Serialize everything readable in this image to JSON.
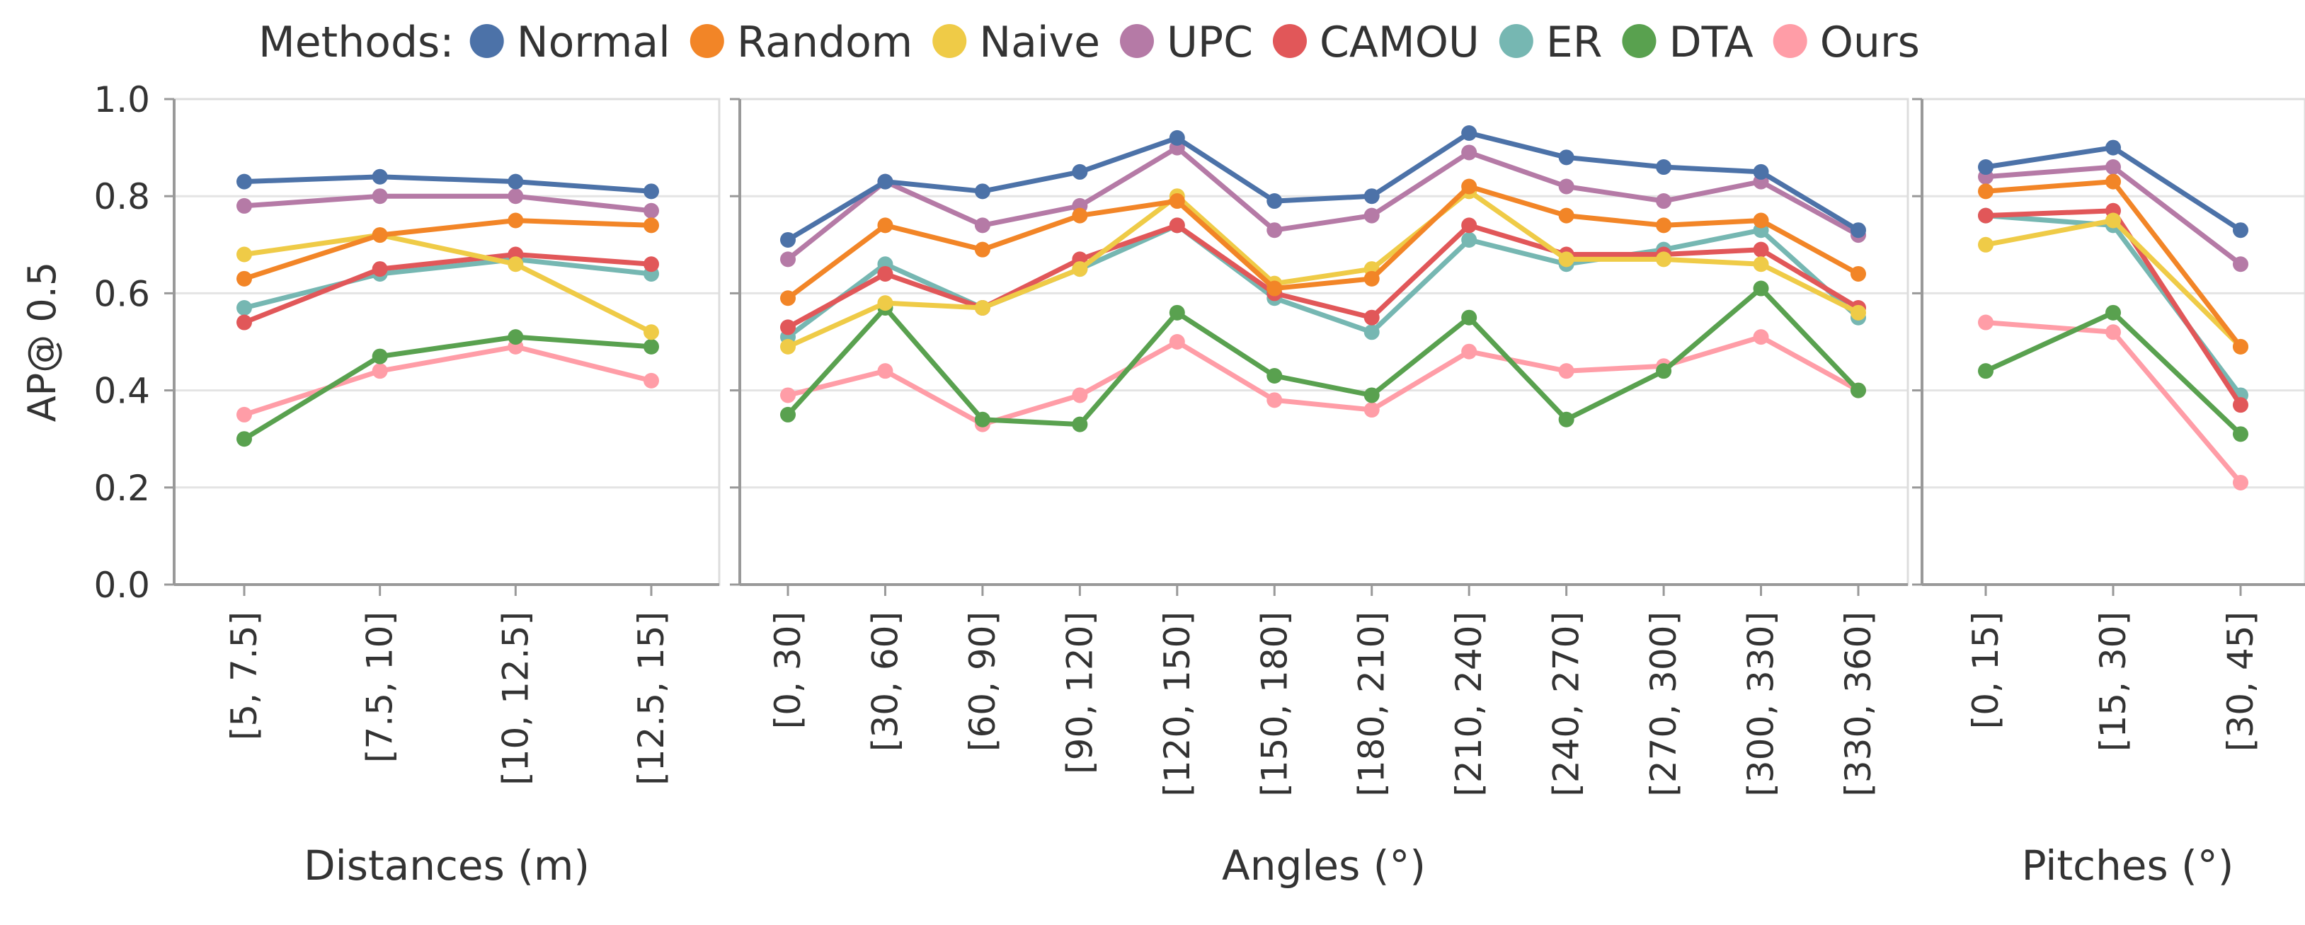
{
  "chart_data": {
    "type": "line",
    "ylabel": "AP@ 0.5",
    "ylim": [
      0,
      1
    ],
    "yticks": [
      "0.0",
      "0.2",
      "0.4",
      "0.6",
      "0.8",
      "1.0"
    ],
    "ytick_values": [
      0,
      0.2,
      0.4,
      0.6,
      0.8,
      1.0
    ],
    "grid": true,
    "legend": {
      "title": "Methods:",
      "placement": "top-center",
      "items": [
        {
          "name": "Normal",
          "color": "#4c72a8"
        },
        {
          "name": "Random",
          "color": "#f28527"
        },
        {
          "name": "Naive",
          "color": "#efcb47"
        },
        {
          "name": "UPC",
          "color": "#b57aa6"
        },
        {
          "name": "CAMOU",
          "color": "#e15759"
        },
        {
          "name": "ER",
          "color": "#76b7b2"
        },
        {
          "name": "DTA",
          "color": "#59a14f"
        },
        {
          "name": "Ours",
          "color": "#ff9da7"
        }
      ]
    },
    "panels": [
      {
        "xlabel": "Distances (m)",
        "categories": [
          "[5, 7.5]",
          "[7.5, 10]",
          "[10, 12.5]",
          "[12.5, 15]"
        ],
        "series": [
          {
            "name": "Normal",
            "values": [
              0.83,
              0.84,
              0.83,
              0.81
            ]
          },
          {
            "name": "Random",
            "values": [
              0.63,
              0.72,
              0.75,
              0.74
            ]
          },
          {
            "name": "Naive",
            "values": [
              0.68,
              0.72,
              0.66,
              0.52
            ]
          },
          {
            "name": "UPC",
            "values": [
              0.78,
              0.8,
              0.8,
              0.77
            ]
          },
          {
            "name": "CAMOU",
            "values": [
              0.54,
              0.65,
              0.68,
              0.66
            ]
          },
          {
            "name": "ER",
            "values": [
              0.57,
              0.64,
              0.67,
              0.64
            ]
          },
          {
            "name": "DTA",
            "values": [
              0.3,
              0.47,
              0.51,
              0.49
            ]
          },
          {
            "name": "Ours",
            "values": [
              0.35,
              0.44,
              0.49,
              0.42
            ]
          }
        ]
      },
      {
        "xlabel": "Angles (°)",
        "categories": [
          "[0, 30]",
          "[30, 60]",
          "[60, 90]",
          "[90, 120]",
          "[120, 150]",
          "[150, 180]",
          "[180, 210]",
          "[210, 240]",
          "[240, 270]",
          "[270, 300]",
          "[300, 330]",
          "[330, 360]"
        ],
        "series": [
          {
            "name": "Normal",
            "values": [
              0.71,
              0.83,
              0.81,
              0.85,
              0.92,
              0.79,
              0.8,
              0.93,
              0.88,
              0.86,
              0.85,
              0.73
            ]
          },
          {
            "name": "Random",
            "values": [
              0.59,
              0.74,
              0.69,
              0.76,
              0.79,
              0.61,
              0.63,
              0.82,
              0.76,
              0.74,
              0.75,
              0.64
            ]
          },
          {
            "name": "Naive",
            "values": [
              0.49,
              0.58,
              0.57,
              0.65,
              0.8,
              0.62,
              0.65,
              0.81,
              0.67,
              0.67,
              0.66,
              0.56
            ]
          },
          {
            "name": "UPC",
            "values": [
              0.67,
              0.83,
              0.74,
              0.78,
              0.9,
              0.73,
              0.76,
              0.89,
              0.82,
              0.79,
              0.83,
              0.72
            ]
          },
          {
            "name": "CAMOU",
            "values": [
              0.53,
              0.64,
              0.57,
              0.67,
              0.74,
              0.6,
              0.55,
              0.74,
              0.68,
              0.68,
              0.69,
              0.57
            ]
          },
          {
            "name": "ER",
            "values": [
              0.51,
              0.66,
              0.57,
              0.65,
              0.74,
              0.59,
              0.52,
              0.71,
              0.66,
              0.69,
              0.73,
              0.55
            ]
          },
          {
            "name": "DTA",
            "values": [
              0.35,
              0.57,
              0.34,
              0.33,
              0.56,
              0.43,
              0.39,
              0.55,
              0.34,
              0.44,
              0.61,
              0.4
            ]
          },
          {
            "name": "Ours",
            "values": [
              0.39,
              0.44,
              0.33,
              0.39,
              0.5,
              0.38,
              0.36,
              0.48,
              0.44,
              0.45,
              0.51,
              0.4
            ]
          }
        ]
      },
      {
        "xlabel": "Pitches (°)",
        "categories": [
          "[0, 15]",
          "[15, 30]",
          "[30, 45]"
        ],
        "series": [
          {
            "name": "Normal",
            "values": [
              0.86,
              0.9,
              0.73
            ]
          },
          {
            "name": "Random",
            "values": [
              0.81,
              0.83,
              0.49
            ]
          },
          {
            "name": "Naive",
            "values": [
              0.7,
              0.75,
              0.49
            ]
          },
          {
            "name": "UPC",
            "values": [
              0.84,
              0.86,
              0.66
            ]
          },
          {
            "name": "CAMOU",
            "values": [
              0.76,
              0.77,
              0.37
            ]
          },
          {
            "name": "ER",
            "values": [
              0.76,
              0.74,
              0.39
            ]
          },
          {
            "name": "DTA",
            "values": [
              0.44,
              0.56,
              0.31
            ]
          },
          {
            "name": "Ours",
            "values": [
              0.54,
              0.52,
              0.21
            ]
          }
        ]
      }
    ]
  }
}
